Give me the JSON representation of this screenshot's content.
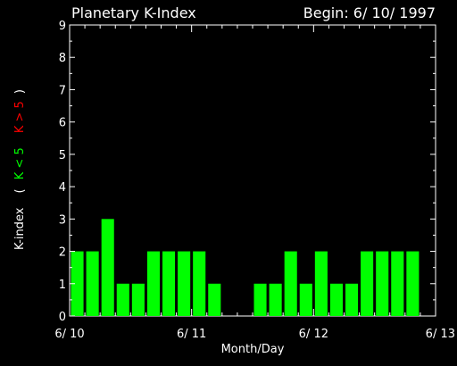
{
  "chart_data": {
    "type": "bar",
    "title": "Planetary K-Index",
    "begin_label": "Begin: 6/ 10/ 1997",
    "xlabel": "Month/Day",
    "ylabel": {
      "prefix": "K-index",
      "open": "(",
      "green_part": "K < 5",
      "red_part": "K > 5",
      "close": ")"
    },
    "ylim": [
      0,
      9
    ],
    "yticks": [
      "0",
      "1",
      "2",
      "3",
      "4",
      "5",
      "6",
      "7",
      "8",
      "9"
    ],
    "xlim": [
      0,
      24
    ],
    "xticks": [
      {
        "pos": 0,
        "label": "6/ 10"
      },
      {
        "pos": 8,
        "label": "6/ 11"
      },
      {
        "pos": 16,
        "label": "6/ 12"
      },
      {
        "pos": 24,
        "label": "6/ 13"
      }
    ],
    "values": [
      2,
      2,
      3,
      1,
      1,
      2,
      2,
      2,
      2,
      1,
      0,
      0,
      1,
      1,
      2,
      1,
      2,
      1,
      1,
      2,
      2,
      2,
      2,
      0
    ],
    "colors": {
      "low": "#00ff00",
      "high": "#ff0000",
      "axis": "#ffffff",
      "background": "#000000"
    },
    "threshold": 5
  }
}
